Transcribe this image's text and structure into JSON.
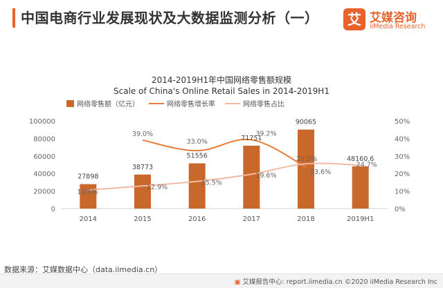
{
  "page": {
    "title": "中国电商行业发展现状及大数据监测分析（一）",
    "source": "数据来源：艾媒数据中心（data.iimedia.cn）",
    "footer": "艾媒报告中心: report.iimedia.cn ©2020 iiMedia Research Inc"
  },
  "logo": {
    "mark": "艾",
    "name": "艾媒咨询",
    "subtitle": "iiMedia Research",
    "color": "#e8632b"
  },
  "chart_data": {
    "type": "bar",
    "title": "2014-2019H1年中国网络零售额规模",
    "subtitle": "Scale of China's Online Retail Sales in 2014-2019H1",
    "categories": [
      "2014",
      "2015",
      "2016",
      "2017",
      "2018",
      "2019H1"
    ],
    "left_axis": {
      "ylim": [
        0,
        100000
      ],
      "ticks": [
        "0",
        "20000",
        "40000",
        "60000",
        "80000",
        "100000"
      ]
    },
    "right_axis": {
      "ylim": [
        0,
        50
      ],
      "ticks": [
        "0%",
        "10%",
        "20%",
        "30%",
        "40%",
        "50%"
      ]
    },
    "grid": false,
    "legend_position": "top",
    "series": [
      {
        "name": "网络零售额（亿元）",
        "type": "bar",
        "axis": "left",
        "color": "#c8682a",
        "values": [
          27898,
          38773,
          51556,
          71751,
          90065,
          48160.6
        ],
        "labels": [
          "27898",
          "38773",
          "51556",
          "71751",
          "90065",
          "48160.6"
        ]
      },
      {
        "name": "网络零售增长率",
        "type": "line",
        "axis": "right",
        "color": "#e97b38",
        "smooth": true,
        "values": [
          null,
          39.0,
          33.0,
          39.2,
          23.6,
          null
        ],
        "labels": [
          "",
          "39.0%",
          "33.0%",
          "39.2%",
          "23.6%",
          ""
        ]
      },
      {
        "name": "网络零售占比",
        "type": "line",
        "axis": "right",
        "color": "#f2b9a3",
        "smooth": true,
        "values": [
          10.6,
          12.9,
          15.5,
          19.6,
          25.5,
          24.7
        ],
        "labels": [
          "10.6%",
          "12.9%",
          "15.5%",
          "19.6%",
          "25.5%",
          "24.7%"
        ]
      }
    ]
  }
}
